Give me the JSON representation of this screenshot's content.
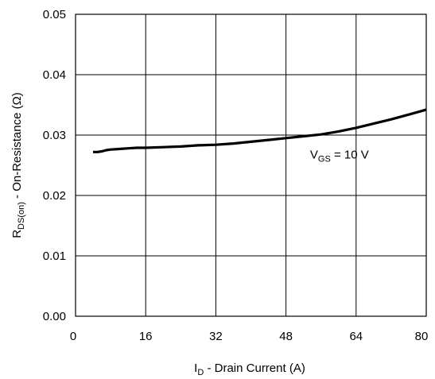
{
  "chart_data": {
    "type": "line",
    "xlabel": {
      "main": "I",
      "sub": "D",
      "rest": " - Drain Current (A)"
    },
    "ylabel": {
      "main": "R",
      "sub": "DS(on)",
      "rest": " - On-Resistance (Ω)"
    },
    "xlim": [
      0,
      80
    ],
    "ylim": [
      0.0,
      0.05
    ],
    "x_ticks": [
      "0",
      "16",
      "32",
      "48",
      "64",
      "80"
    ],
    "y_ticks": [
      "0.00",
      "0.01",
      "0.02",
      "0.03",
      "0.04",
      "0.05"
    ],
    "grid": true,
    "series": [
      {
        "x": [
          4,
          5,
          6,
          7,
          8,
          10,
          12,
          14,
          16,
          20,
          24,
          28,
          32,
          36,
          40,
          44,
          48,
          52,
          56,
          60,
          64,
          68,
          72,
          76,
          80
        ],
        "y": [
          0.0272,
          0.0272,
          0.0273,
          0.0275,
          0.0276,
          0.0277,
          0.0278,
          0.0279,
          0.0279,
          0.028,
          0.0281,
          0.0283,
          0.0284,
          0.0286,
          0.0289,
          0.0292,
          0.0295,
          0.0298,
          0.0301,
          0.0306,
          0.0312,
          0.0319,
          0.0326,
          0.0334,
          0.0342
        ]
      }
    ],
    "annotations": [
      {
        "main": "V",
        "sub": "GS",
        "rest": " = 10 V",
        "x": 53.5,
        "y": 0.0268
      }
    ]
  }
}
